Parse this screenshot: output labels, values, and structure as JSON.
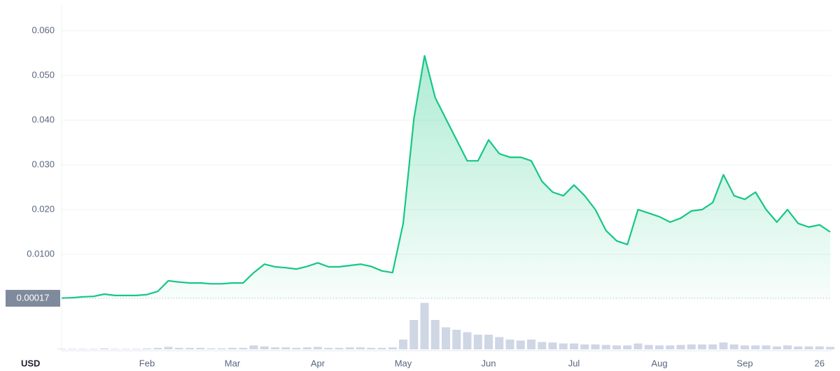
{
  "chart_data": {
    "type": "line",
    "y_unit": "USD",
    "categories": [
      null,
      null,
      null,
      null,
      null,
      null,
      null,
      null,
      "Feb",
      null,
      null,
      null,
      null,
      null,
      null,
      null,
      "Mar",
      null,
      null,
      null,
      null,
      null,
      null,
      null,
      "Apr",
      null,
      null,
      null,
      null,
      null,
      null,
      null,
      "May",
      null,
      null,
      null,
      null,
      null,
      null,
      null,
      "Jun",
      null,
      null,
      null,
      null,
      null,
      null,
      null,
      "Jul",
      null,
      null,
      null,
      null,
      null,
      null,
      null,
      "Aug",
      null,
      null,
      null,
      null,
      null,
      null,
      null,
      "Sep",
      null,
      null,
      null,
      null,
      null,
      null,
      "26",
      null
    ],
    "series": [
      {
        "color": "#16c784",
        "values": [
          0.0002,
          0.0003,
          0.0005,
          0.0006,
          0.0011,
          0.0008,
          0.0008,
          0.0008,
          0.001,
          0.0017,
          0.0041,
          0.0038,
          0.0036,
          0.0036,
          0.0034,
          0.0034,
          0.0036,
          0.0036,
          0.0059,
          0.0078,
          0.0072,
          0.007,
          0.0067,
          0.0073,
          0.0081,
          0.0072,
          0.0072,
          0.0075,
          0.0078,
          0.0073,
          0.0063,
          0.0059,
          0.0169,
          0.0403,
          0.0544,
          0.045,
          0.0403,
          0.0356,
          0.0309,
          0.0309,
          0.0356,
          0.0325,
          0.0317,
          0.0317,
          0.0309,
          0.0263,
          0.0239,
          0.0231,
          0.0255,
          0.0231,
          0.02,
          0.0153,
          0.013,
          0.0122,
          0.02,
          0.0192,
          0.0184,
          0.0172,
          0.0181,
          0.0197,
          0.02,
          0.0216,
          0.0278,
          0.0231,
          0.0223,
          0.0239,
          0.02,
          0.0172,
          0.02,
          0.0169,
          0.0161,
          0.0166,
          0.015
        ]
      }
    ],
    "volume": {
      "color": "#cfd6e4",
      "ylim": [
        0,
        100
      ],
      "values": [
        1,
        1,
        1,
        1,
        2,
        1,
        1,
        1,
        2,
        3,
        5,
        3,
        3,
        3,
        2,
        2,
        3,
        3,
        8,
        6,
        4,
        4,
        3,
        4,
        5,
        3,
        3,
        4,
        4,
        3,
        3,
        4,
        20,
        60,
        95,
        60,
        45,
        40,
        35,
        30,
        30,
        25,
        20,
        18,
        20,
        15,
        14,
        12,
        12,
        10,
        10,
        9,
        8,
        8,
        12,
        9,
        8,
        8,
        9,
        10,
        10,
        10,
        14,
        10,
        8,
        8,
        8,
        6,
        8,
        6,
        6,
        6,
        5
      ]
    },
    "ylim": [
      0,
      0.065
    ],
    "yticks": [
      {
        "value": 0.01,
        "label": "0.0100"
      },
      {
        "value": 0.02,
        "label": "0.020"
      },
      {
        "value": 0.03,
        "label": "0.030"
      },
      {
        "value": 0.04,
        "label": "0.040"
      },
      {
        "value": 0.05,
        "label": "0.050"
      },
      {
        "value": 0.06,
        "label": "0.060"
      }
    ],
    "reference": {
      "value": 0.00017,
      "label": "0.00017"
    },
    "grid": true
  }
}
